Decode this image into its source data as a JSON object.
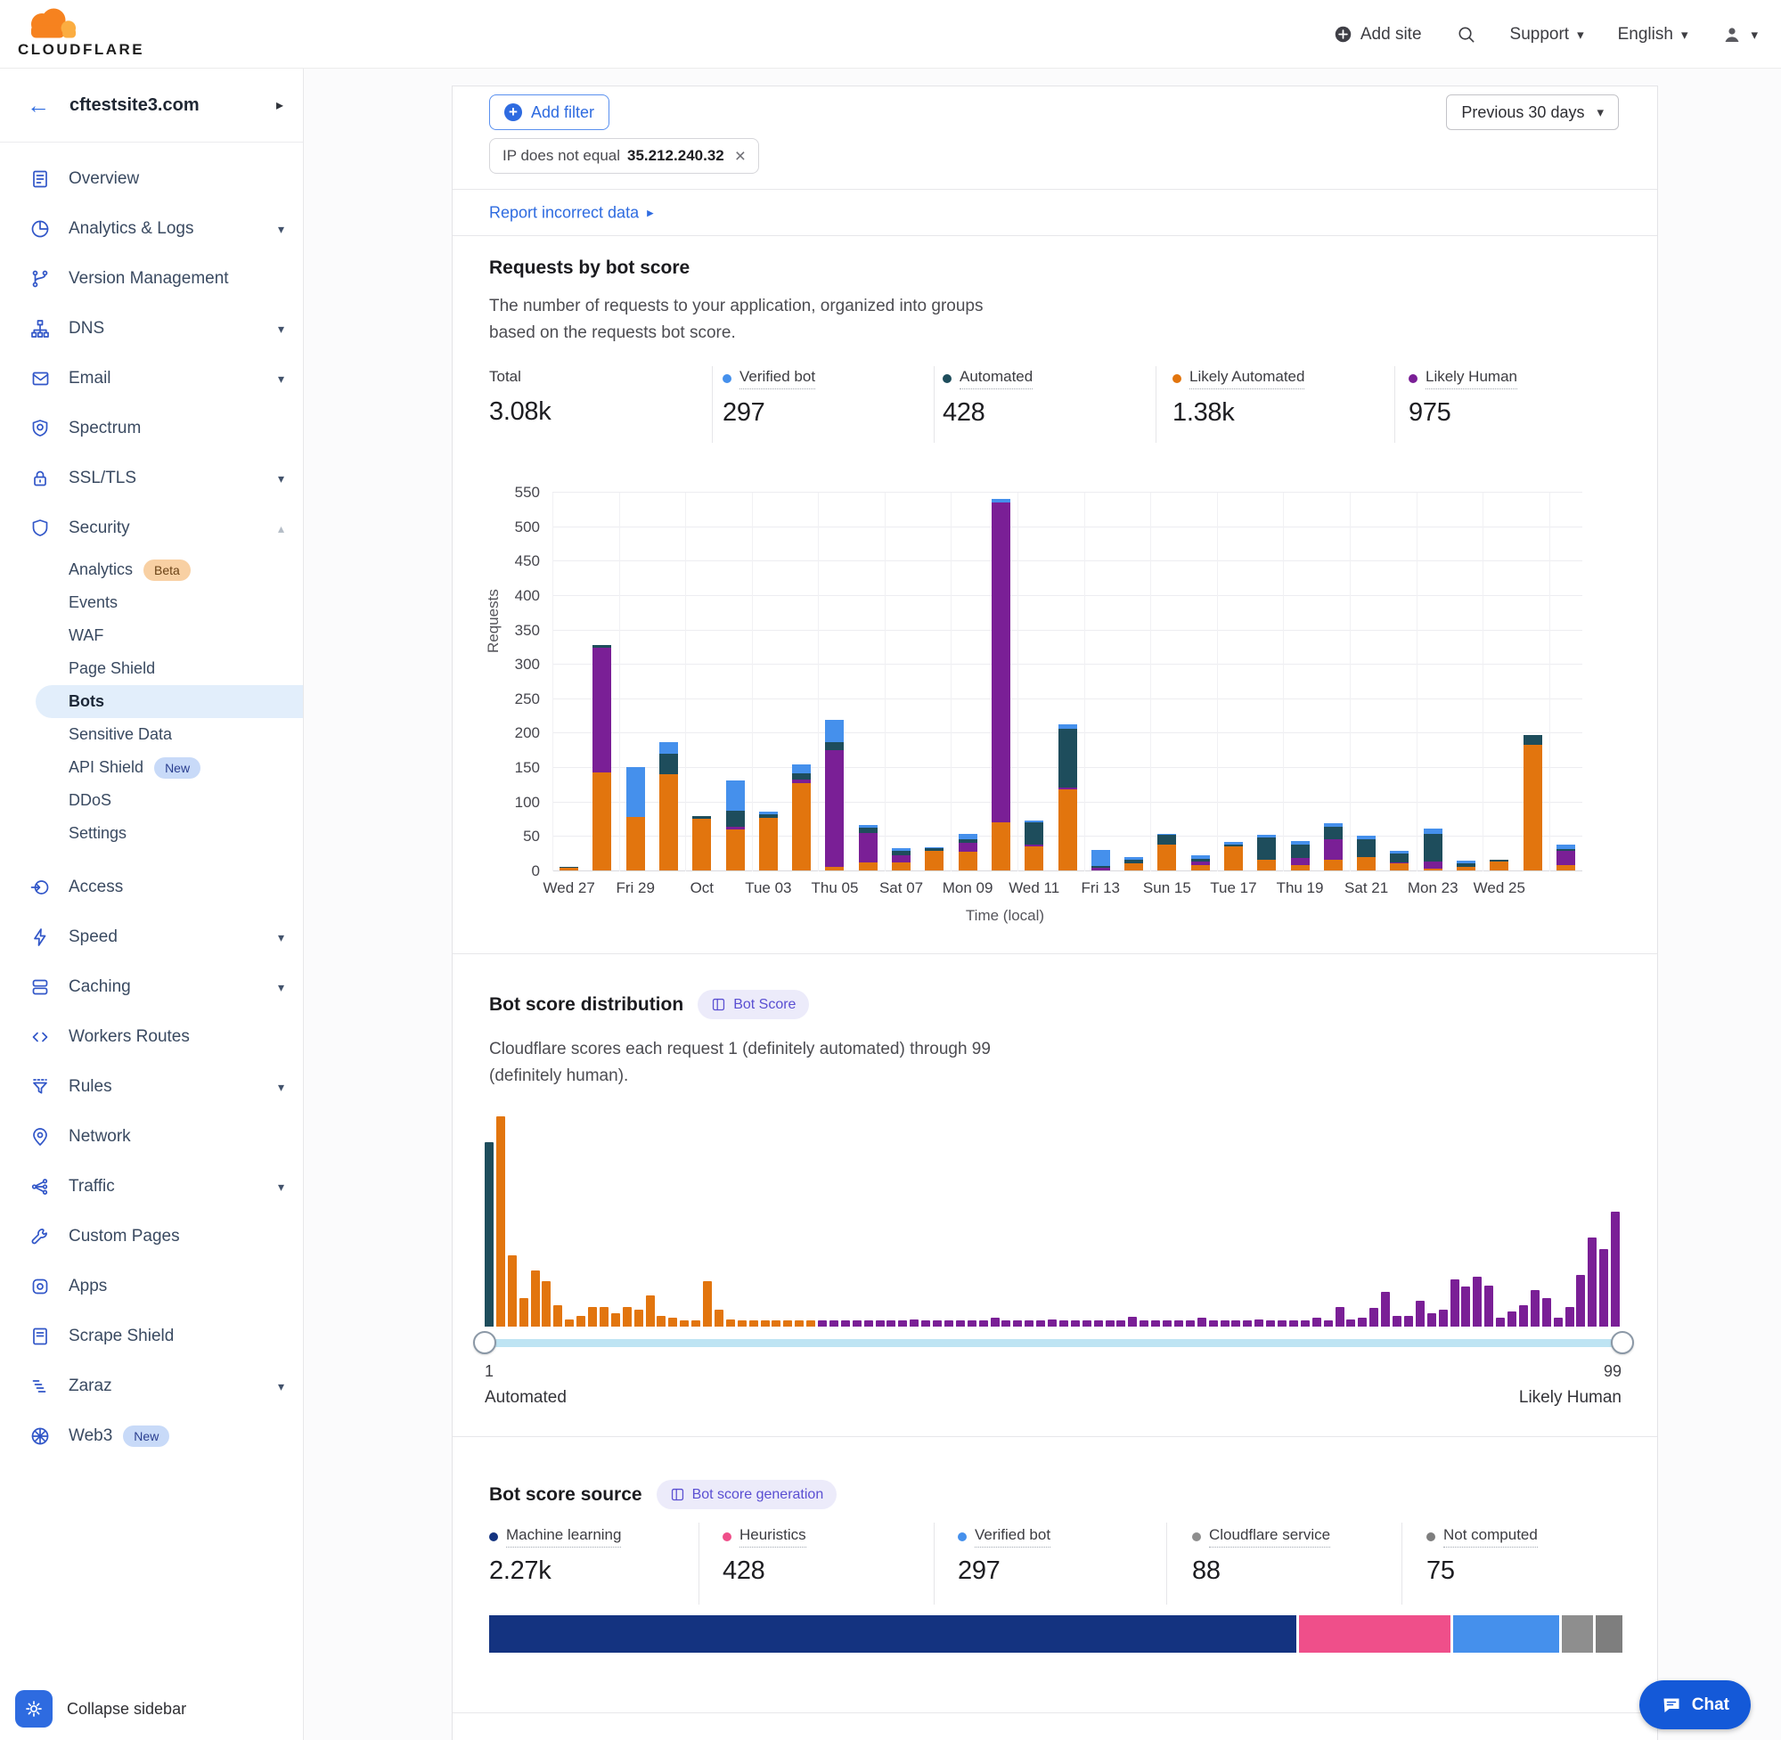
{
  "colors": {
    "accent_blue": "#2E6BE0",
    "sidebar_icon": "#3156C8",
    "chat_blue": "#1459D8",
    "track_blue": "#BEE4F3",
    "beta_badge_bg": "#F8D0A3",
    "new_badge_bg": "#C8DAF8",
    "score_badge_bg": "#ECEBFA",
    "score_badge_text": "#5A4FD2",
    "verified_bot": "#4590EC",
    "automated": "#1E4D5C",
    "likely_automated": "#E2750E",
    "likely_human": "#7A1F96",
    "machine_learning": "#143380",
    "heuristics": "#EF4F8A",
    "cloudflare_service": "#8E8E8E",
    "not_computed": "#7E7E7E"
  },
  "header": {
    "logo_text": "CLOUDFLARE",
    "add_site": "Add site",
    "support": "Support",
    "language": "English"
  },
  "sidebar": {
    "site": "cftestsite3.com",
    "collapse_label": "Collapse sidebar",
    "items": [
      {
        "label": "Overview",
        "icon": "overview-icon"
      },
      {
        "label": "Analytics & Logs",
        "icon": "analytics-icon",
        "chevron": "down"
      },
      {
        "label": "Version Management",
        "icon": "version-icon"
      },
      {
        "label": "DNS",
        "icon": "dns-icon",
        "chevron": "down"
      },
      {
        "label": "Email",
        "icon": "email-icon",
        "chevron": "down"
      },
      {
        "label": "Spectrum",
        "icon": "spectrum-icon"
      },
      {
        "label": "SSL/TLS",
        "icon": "ssl-icon",
        "chevron": "down"
      },
      {
        "label": "Security",
        "icon": "security-icon",
        "chevron": "up",
        "children": [
          {
            "label": "Analytics",
            "badge": "Beta"
          },
          {
            "label": "Events"
          },
          {
            "label": "WAF"
          },
          {
            "label": "Page Shield"
          },
          {
            "label": "Bots",
            "active": true
          },
          {
            "label": "Sensitive Data"
          },
          {
            "label": "API Shield",
            "badge": "New"
          },
          {
            "label": "DDoS"
          },
          {
            "label": "Settings"
          }
        ]
      },
      {
        "label": "Access",
        "icon": "access-icon"
      },
      {
        "label": "Speed",
        "icon": "speed-icon",
        "chevron": "down"
      },
      {
        "label": "Caching",
        "icon": "caching-icon",
        "chevron": "down"
      },
      {
        "label": "Workers Routes",
        "icon": "workers-icon"
      },
      {
        "label": "Rules",
        "icon": "rules-icon",
        "chevron": "down"
      },
      {
        "label": "Network",
        "icon": "network-icon"
      },
      {
        "label": "Traffic",
        "icon": "traffic-icon",
        "chevron": "down"
      },
      {
        "label": "Custom Pages",
        "icon": "custom-pages-icon"
      },
      {
        "label": "Apps",
        "icon": "apps-icon"
      },
      {
        "label": "Scrape Shield",
        "icon": "scrape-shield-icon"
      },
      {
        "label": "Zaraz",
        "icon": "zaraz-icon",
        "chevron": "down"
      },
      {
        "label": "Web3",
        "icon": "web3-icon",
        "badge": "New"
      }
    ]
  },
  "filters": {
    "add_filter": "Add filter",
    "chip": {
      "label": "IP does not equal",
      "value": "35.212.240.32"
    },
    "time_range": "Previous 30 days",
    "report_link": "Report incorrect data"
  },
  "requests_section": {
    "title": "Requests by bot score",
    "description": "The number of requests to your application, organized into groups based on the requests bot score.",
    "stats": [
      {
        "label": "Total",
        "value": "3.08k",
        "dot": null
      },
      {
        "label": "Verified bot",
        "value": "297",
        "dot": "verified_bot"
      },
      {
        "label": "Automated",
        "value": "428",
        "dot": "automated"
      },
      {
        "label": "Likely Automated",
        "value": "1.38k",
        "dot": "likely_automated"
      },
      {
        "label": "Likely Human",
        "value": "975",
        "dot": "likely_human"
      }
    ]
  },
  "distribution_section": {
    "title": "Bot score distribution",
    "badge": "Bot Score",
    "description": "Cloudflare scores each request 1 (definitely automated) through 99 (definitely human).",
    "slider": {
      "min_label": "1",
      "max_label": "99",
      "left_caption": "Automated",
      "right_caption": "Likely Human"
    }
  },
  "source_section": {
    "title": "Bot score source",
    "badge": "Bot score generation",
    "stats": [
      {
        "label": "Machine learning",
        "value": "2.27k",
        "num": 2270,
        "dot": "machine_learning"
      },
      {
        "label": "Heuristics",
        "value": "428",
        "num": 428,
        "dot": "heuristics"
      },
      {
        "label": "Verified bot",
        "value": "297",
        "num": 297,
        "dot": "verified_bot"
      },
      {
        "label": "Cloudflare service",
        "value": "88",
        "num": 88,
        "dot": "cloudflare_service"
      },
      {
        "label": "Not computed",
        "value": "75",
        "num": 75,
        "dot": "not_computed"
      }
    ]
  },
  "chat_label": "Chat",
  "chart_data": [
    {
      "id": "requests_by_bot_score",
      "type": "bar",
      "stacked": true,
      "title": "Requests by bot score",
      "ylabel": "Requests",
      "xlabel": "Time (local)",
      "ylim": [
        0,
        550
      ],
      "ytick_step": 50,
      "x_tick_labels": [
        "Wed 27",
        "Fri 29",
        "Oct",
        "Tue 03",
        "Thu 05",
        "Sat 07",
        "Mon 09",
        "Wed 11",
        "Fri 13",
        "Sun 15",
        "Tue 17",
        "Thu 19",
        "Sat 21",
        "Mon 23",
        "Wed 25"
      ],
      "x_tick_every_other_bar": true,
      "stack_bottom_to_top": true,
      "series": [
        {
          "name": "Likely Automated",
          "color_key": "likely_automated",
          "values": [
            4,
            143,
            78,
            140,
            75,
            60,
            76,
            127,
            5,
            12,
            12,
            28,
            27,
            70,
            35,
            118,
            0,
            10,
            38,
            8,
            35,
            15,
            8,
            15,
            20,
            10,
            3,
            5,
            13,
            183,
            8
          ]
        },
        {
          "name": "Likely Human",
          "color_key": "likely_human",
          "values": [
            0,
            180,
            0,
            0,
            0,
            3,
            0,
            5,
            170,
            43,
            10,
            0,
            13,
            465,
            2,
            3,
            4,
            0,
            0,
            5,
            0,
            0,
            10,
            30,
            0,
            2,
            10,
            0,
            0,
            0,
            20
          ]
        },
        {
          "name": "Automated",
          "color_key": "automated",
          "values": [
            1,
            5,
            0,
            30,
            4,
            24,
            6,
            9,
            11,
            7,
            6,
            4,
            5,
            0,
            33,
            85,
            2,
            6,
            14,
            4,
            3,
            33,
            20,
            18,
            25,
            12,
            40,
            5,
            3,
            14,
            3
          ]
        },
        {
          "name": "Verified bot",
          "color_key": "verified_bot",
          "values": [
            0,
            0,
            72,
            17,
            0,
            44,
            3,
            13,
            33,
            4,
            4,
            2,
            8,
            5,
            2,
            6,
            24,
            3,
            1,
            5,
            3,
            4,
            5,
            5,
            5,
            4,
            8,
            4,
            0,
            0,
            6
          ]
        }
      ]
    },
    {
      "id": "bot_score_distribution",
      "type": "bar",
      "title": "Bot score distribution",
      "x_range": [
        1,
        99
      ],
      "note": "bar heights are fractions of the tallest bar; score 1 = automated, 2-29 = likely automated, 30-99 = likely human",
      "heights": [
        0.85,
        0.97,
        0.33,
        0.13,
        0.26,
        0.21,
        0.1,
        0.035,
        0.05,
        0.09,
        0.09,
        0.06,
        0.09,
        0.08,
        0.145,
        0.05,
        0.04,
        0.03,
        0.03,
        0.21,
        0.08,
        0.035,
        0.028,
        0.028,
        0.028,
        0.028,
        0.028,
        0.028,
        0.028,
        0.03,
        0.03,
        0.03,
        0.03,
        0.03,
        0.03,
        0.03,
        0.03,
        0.035,
        0.03,
        0.03,
        0.03,
        0.03,
        0.03,
        0.03,
        0.04,
        0.03,
        0.03,
        0.03,
        0.03,
        0.035,
        0.03,
        0.03,
        0.03,
        0.03,
        0.03,
        0.03,
        0.045,
        0.03,
        0.03,
        0.03,
        0.03,
        0.03,
        0.04,
        0.03,
        0.03,
        0.03,
        0.03,
        0.035,
        0.03,
        0.03,
        0.03,
        0.03,
        0.04,
        0.03,
        0.09,
        0.035,
        0.04,
        0.085,
        0.16,
        0.05,
        0.05,
        0.12,
        0.06,
        0.08,
        0.22,
        0.185,
        0.23,
        0.19,
        0.04,
        0.07,
        0.1,
        0.17,
        0.13,
        0.04,
        0.09,
        0.24,
        0.41,
        0.36,
        0.53
      ]
    },
    {
      "id": "bot_score_source",
      "type": "stacked-horizontal-bar",
      "title": "Bot score source",
      "segments": [
        {
          "label": "Machine learning",
          "value": 2270,
          "color_key": "machine_learning"
        },
        {
          "label": "Heuristics",
          "value": 428,
          "color_key": "heuristics"
        },
        {
          "label": "Verified bot",
          "value": 297,
          "color_key": "verified_bot"
        },
        {
          "label": "Cloudflare service",
          "value": 88,
          "color_key": "cloudflare_service"
        },
        {
          "label": "Not computed",
          "value": 75,
          "color_key": "not_computed"
        }
      ]
    }
  ]
}
